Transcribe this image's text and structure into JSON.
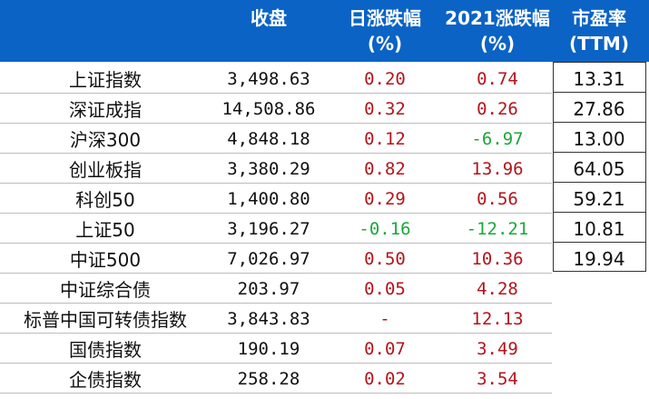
{
  "headers": {
    "close": "收盘",
    "daily_change": "日涨跌幅",
    "daily_change_unit": "(%)",
    "ytd_change": "2021涨跌幅",
    "ytd_change_unit": "(%)",
    "pe": "市盈率",
    "pe_unit": "(TTM)"
  },
  "rows": [
    {
      "name": "上证指数",
      "close": "3,498.63",
      "daily": "0.20",
      "daily_sign": "pos",
      "ytd": "0.74",
      "ytd_sign": "pos",
      "pe": "13.31"
    },
    {
      "name": "深证成指",
      "close": "14,508.86",
      "daily": "0.32",
      "daily_sign": "pos",
      "ytd": "0.26",
      "ytd_sign": "pos",
      "pe": "27.86"
    },
    {
      "name": "沪深300",
      "close": "4,848.18",
      "daily": "0.12",
      "daily_sign": "pos",
      "ytd": "-6.97",
      "ytd_sign": "neg",
      "pe": "13.00"
    },
    {
      "name": "创业板指",
      "close": "3,380.29",
      "daily": "0.82",
      "daily_sign": "pos",
      "ytd": "13.96",
      "ytd_sign": "pos",
      "pe": "64.05"
    },
    {
      "name": "科创50",
      "close": "1,400.80",
      "daily": "0.29",
      "daily_sign": "pos",
      "ytd": "0.56",
      "ytd_sign": "pos",
      "pe": "59.21"
    },
    {
      "name": "上证50",
      "close": "3,196.27",
      "daily": "-0.16",
      "daily_sign": "neg",
      "ytd": "-12.21",
      "ytd_sign": "neg",
      "pe": "10.81"
    },
    {
      "name": "中证500",
      "close": "7,026.97",
      "daily": "0.50",
      "daily_sign": "pos",
      "ytd": "10.36",
      "ytd_sign": "pos",
      "pe": "19.94"
    },
    {
      "name": "中证综合债",
      "close": "203.97",
      "daily": "0.05",
      "daily_sign": "pos",
      "ytd": "4.28",
      "ytd_sign": "pos",
      "pe": ""
    },
    {
      "name": "标普中国可转债指数",
      "close": "3,843.83",
      "daily": "-",
      "daily_sign": "pos",
      "ytd": "12.13",
      "ytd_sign": "pos",
      "pe": ""
    },
    {
      "name": "国债指数",
      "close": "190.19",
      "daily": "0.07",
      "daily_sign": "pos",
      "ytd": "3.49",
      "ytd_sign": "pos",
      "pe": ""
    },
    {
      "name": "企债指数",
      "close": "258.28",
      "daily": "0.02",
      "daily_sign": "pos",
      "ytd": "3.54",
      "ytd_sign": "pos",
      "pe": ""
    }
  ],
  "colors": {
    "header_bg": "#0b63c5",
    "positive": "#b3151b",
    "negative": "#1aa83a"
  }
}
